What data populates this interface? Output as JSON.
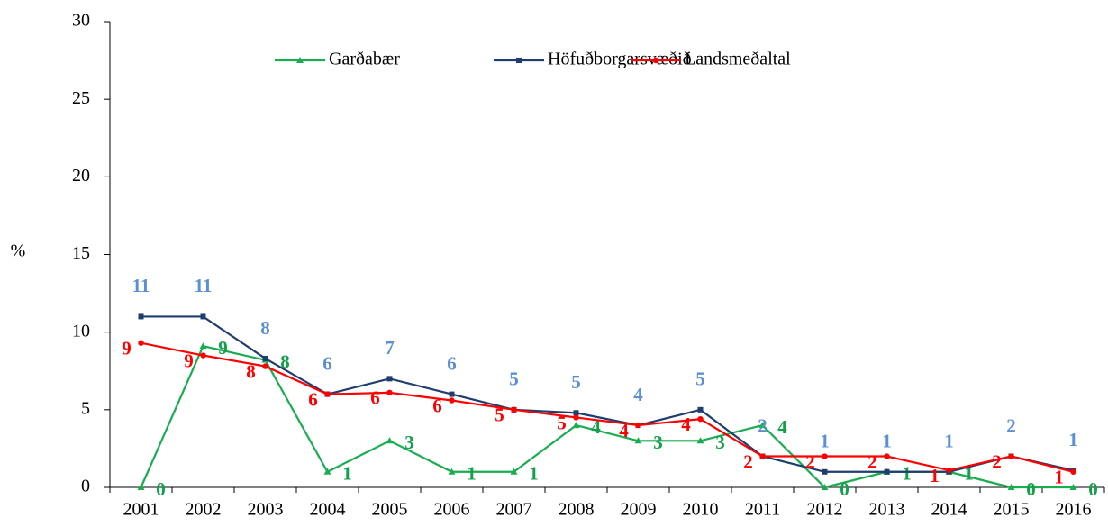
{
  "chart_data": {
    "type": "line",
    "y_label": "%",
    "categories": [
      "2001",
      "2002",
      "2003",
      "2004",
      "2005",
      "2006",
      "2007",
      "2008",
      "2009",
      "2010",
      "2011",
      "2012",
      "2013",
      "2014",
      "2015",
      "2016"
    ],
    "ylim": [
      0,
      30
    ],
    "yticks": [
      0,
      5,
      10,
      15,
      20,
      25,
      30
    ],
    "legend": "top",
    "series": [
      {
        "name": "Garðabær",
        "color": "#19ad50",
        "label_color": "#12a04a",
        "marker": "triangle",
        "values": [
          0,
          9.1,
          8.2,
          1,
          3,
          1,
          1,
          4,
          3,
          3,
          4,
          0,
          1,
          1,
          0,
          0
        ],
        "value_labels": [
          "0",
          "9",
          "8",
          "1",
          "3",
          "1",
          "1",
          "4",
          "3",
          "3",
          "4",
          "0",
          "1",
          "1",
          "0",
          "0"
        ]
      },
      {
        "name": "Höfuðborgarsvæðið",
        "color": "#1f3d6e",
        "label_color": "#5b8fd4",
        "marker": "square",
        "values": [
          11,
          11,
          8.3,
          6,
          7,
          6,
          5,
          4.8,
          4,
          5,
          2,
          1,
          1,
          1,
          2,
          1.1
        ],
        "value_labels": [
          "11",
          "11",
          "8",
          "6",
          "7",
          "6",
          "5",
          "5",
          "4",
          "5",
          "2",
          "1",
          "1",
          "1",
          "2",
          "1"
        ]
      },
      {
        "name": "Landsmeðaltal",
        "color": "#ff0000",
        "label_color": "#ff0000",
        "marker": "circle",
        "values": [
          9.3,
          8.5,
          7.8,
          6,
          6.1,
          5.6,
          5,
          4.5,
          4,
          4.4,
          2,
          2,
          2,
          1.1,
          2,
          1
        ],
        "value_labels": [
          "9",
          "9",
          "8",
          "6",
          "6",
          "6",
          "5",
          "5",
          "4",
          "4",
          "2",
          "2",
          "2",
          "1",
          "2",
          "1"
        ]
      }
    ]
  }
}
